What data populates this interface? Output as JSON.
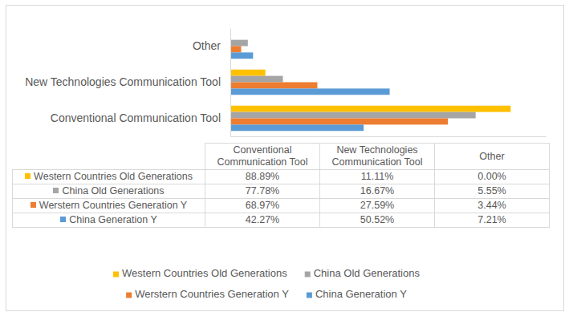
{
  "chart_data": {
    "type": "bar",
    "orientation": "horizontal",
    "categories": [
      "Conventional Communication Tool",
      "New Technologies Communication Tool",
      "Other"
    ],
    "series": [
      {
        "name": "Western Countries Old Generations",
        "color": "#ffc000",
        "values": [
          88.89,
          11.11,
          0
        ],
        "value_labels": [
          "88.89%",
          "11.11%",
          "0.00%"
        ]
      },
      {
        "name": "China Old Generations",
        "color": "#a5a5a5",
        "values": [
          77.78,
          16.67,
          5.55
        ],
        "value_labels": [
          "77.78%",
          "16.67%",
          "5.55%"
        ]
      },
      {
        "name": "Werstern Countries Generation Y",
        "color": "#ed7d31",
        "values": [
          68.97,
          27.59,
          3.44
        ],
        "value_labels": [
          "68.97%",
          "27.59%",
          "3.44%"
        ]
      },
      {
        "name": "China Generation Y",
        "color": "#5b9bd5",
        "values": [
          42.27,
          50.52,
          7.21
        ],
        "value_labels": [
          "42.27%",
          "50.52%",
          "7.21%"
        ]
      }
    ],
    "xlim": [
      0,
      100
    ],
    "tick_labels": "y",
    "legend": "bottom"
  }
}
